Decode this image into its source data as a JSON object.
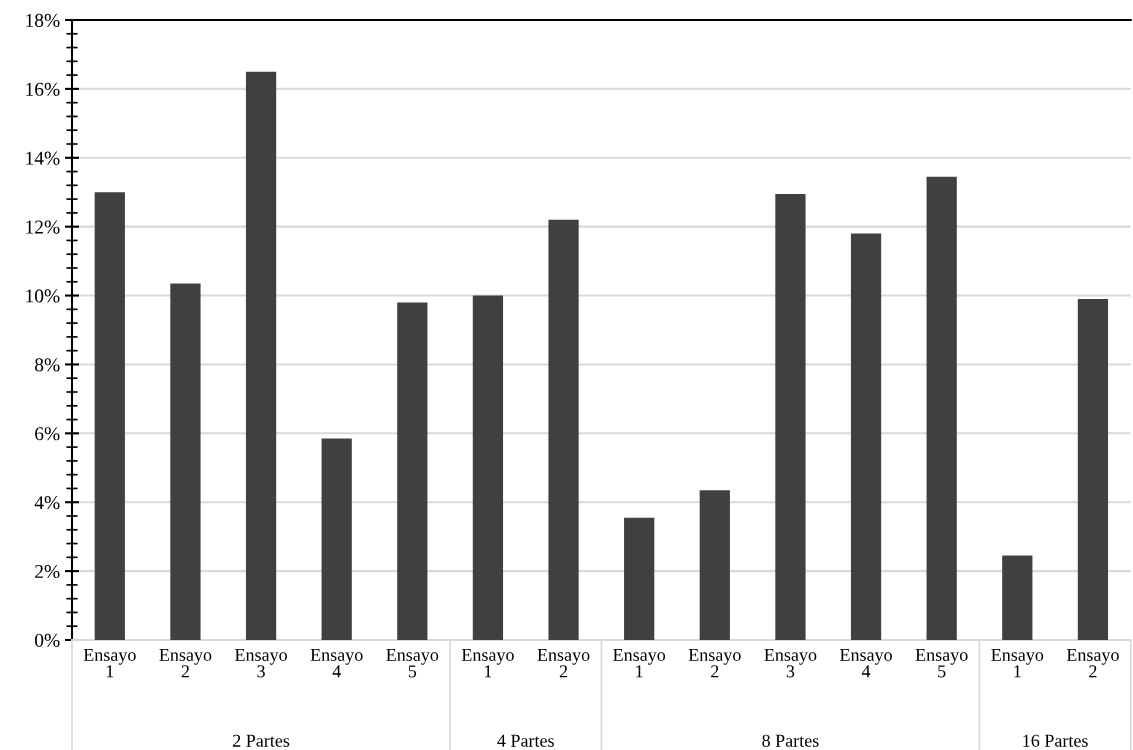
{
  "chart_data": {
    "type": "bar",
    "categories": [
      "Ensayo\n1",
      "Ensayo\n2",
      "Ensayo\n3",
      "Ensayo\n4",
      "Ensayo\n5",
      "Ensayo\n1",
      "Ensayo\n2",
      "Ensayo\n1",
      "Ensayo\n2",
      "Ensayo\n3",
      "Ensayo\n4",
      "Ensayo\n5",
      "Ensayo\n1",
      "Ensayo\n2"
    ],
    "values": [
      13.0,
      10.35,
      16.5,
      5.85,
      9.8,
      10.0,
      12.2,
      3.55,
      4.35,
      12.95,
      11.8,
      13.45,
      2.45,
      9.9
    ],
    "color": "#404040",
    "ylim": [
      0,
      18
    ],
    "yticks": [
      {
        "value": 0,
        "label": "0%"
      },
      {
        "value": 2,
        "label": "2%"
      },
      {
        "value": 4,
        "label": "4%"
      },
      {
        "value": 6,
        "label": "6%"
      },
      {
        "value": 8,
        "label": "8%"
      },
      {
        "value": 10,
        "label": "10%"
      },
      {
        "value": 12,
        "label": "12%"
      },
      {
        "value": 14,
        "label": "14%"
      },
      {
        "value": 16,
        "label": "16%"
      },
      {
        "value": 18,
        "label": "18%"
      }
    ],
    "grid": "y",
    "annotations": [
      "2 Partes",
      "4 Partes",
      "8 Partes",
      "16 Partes"
    ]
  }
}
